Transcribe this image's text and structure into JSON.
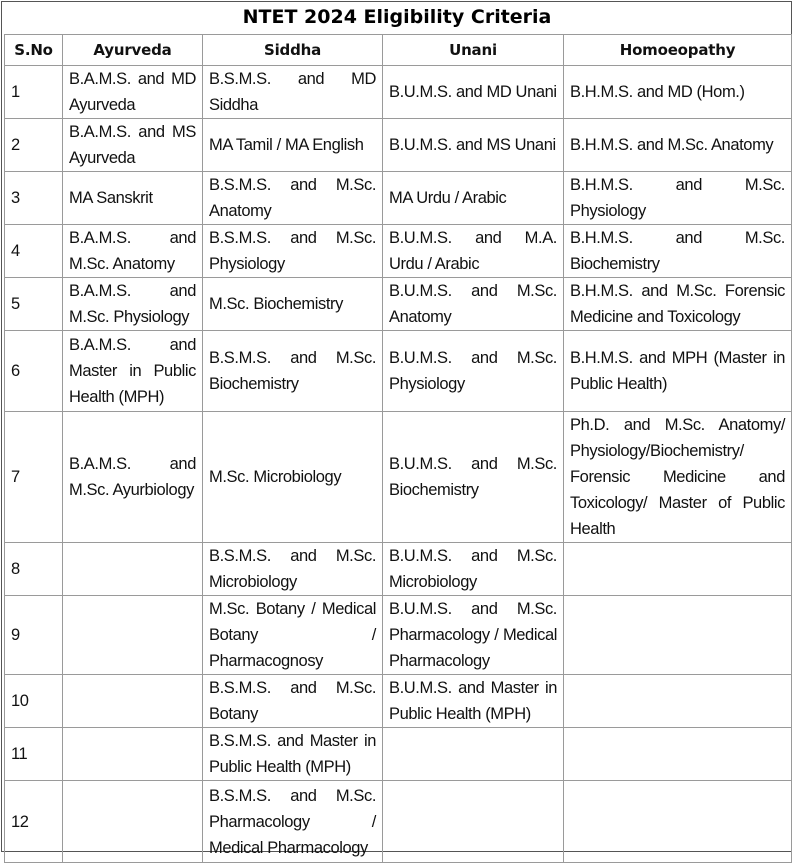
{
  "title": "NTET 2024 Eligibility Criteria",
  "columns": [
    "S.No",
    "Ayurveda",
    "Siddha",
    "Unani",
    "Homoeopathy"
  ],
  "rows": [
    [
      "1",
      "B.A.M.S. and MD Ayurveda",
      "B.S.M.S. and MD Siddha",
      "B.U.M.S. and MD Unani",
      "B.H.M.S. and MD (Hom.)"
    ],
    [
      "2",
      "B.A.M.S. and MS Ayurveda",
      "MA Tamil / MA English",
      "B.U.M.S. and MS Unani",
      "B.H.M.S. and M.Sc. Anatomy"
    ],
    [
      "3",
      "MA Sanskrit",
      "B.S.M.S. and M.Sc. Anatomy",
      "MA Urdu / Arabic",
      "B.H.M.S. and M.Sc. Physiology"
    ],
    [
      "4",
      "B.A.M.S. and M.Sc. Anatomy",
      "B.S.M.S. and M.Sc. Physiology",
      "B.U.M.S. and M.A. Urdu / Arabic",
      "B.H.M.S. and M.Sc. Biochemistry"
    ],
    [
      "5",
      "B.A.M.S. and M.Sc. Physiology",
      "M.Sc. Biochemistry",
      "B.U.M.S. and M.Sc. Anatomy",
      "B.H.M.S. and M.Sc. Forensic Medicine and Toxicology"
    ],
    [
      "6",
      "B.A.M.S. and Master in Public Health (MPH)",
      "B.S.M.S. and M.Sc. Biochemistry",
      "B.U.M.S. and M.Sc. Physiology",
      "B.H.M.S. and MPH (Master in Public Health)"
    ],
    [
      "7",
      "B.A.M.S. and M.Sc. Ayurbiology",
      "M.Sc. Microbiology",
      "B.U.M.S. and M.Sc. Biochemistry",
      "Ph.D. and M.Sc. Anatomy/ Physiology/Biochemistry/ Forensic Medicine and Toxicology/ Master of Public Health"
    ],
    [
      "8",
      "",
      "B.S.M.S. and M.Sc. Microbiology",
      "B.U.M.S. and M.Sc. Microbiology",
      ""
    ],
    [
      "9",
      "",
      "M.Sc. Botany / Medical Botany / Pharmacognosy",
      "B.U.M.S. and M.Sc. Pharmacology / Medical Pharmacology",
      ""
    ],
    [
      "10",
      "",
      "B.S.M.S. and M.Sc. Botany",
      "B.U.M.S. and Master in Public Health (MPH)",
      ""
    ],
    [
      "11",
      "",
      "B.S.M.S. and Master in Public Health (MPH)",
      "",
      ""
    ],
    [
      "12",
      "",
      "B.S.M.S. and M.Sc. Pharmacology / Medical Pharmacology",
      "",
      ""
    ]
  ]
}
